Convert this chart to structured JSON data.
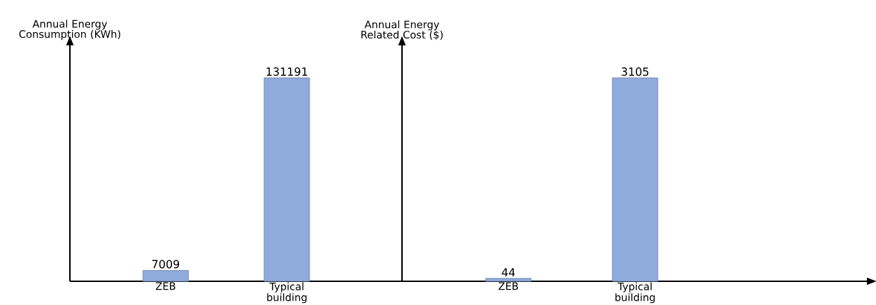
{
  "chart_data": [
    {
      "type": "bar",
      "ylabel": "Annual Energy Consumption (KWh)",
      "categories": [
        "ZEB",
        "Typical building"
      ],
      "values": [
        7009,
        131191
      ],
      "color": "#8faadc",
      "data_labels": true,
      "grid": false
    },
    {
      "type": "bar",
      "ylabel": "Annual Energy Related Cost ($)",
      "categories": [
        "ZEB",
        "Typical building"
      ],
      "values": [
        44,
        3105
      ],
      "color": "#8faadc",
      "data_labels": true,
      "grid": false
    }
  ]
}
